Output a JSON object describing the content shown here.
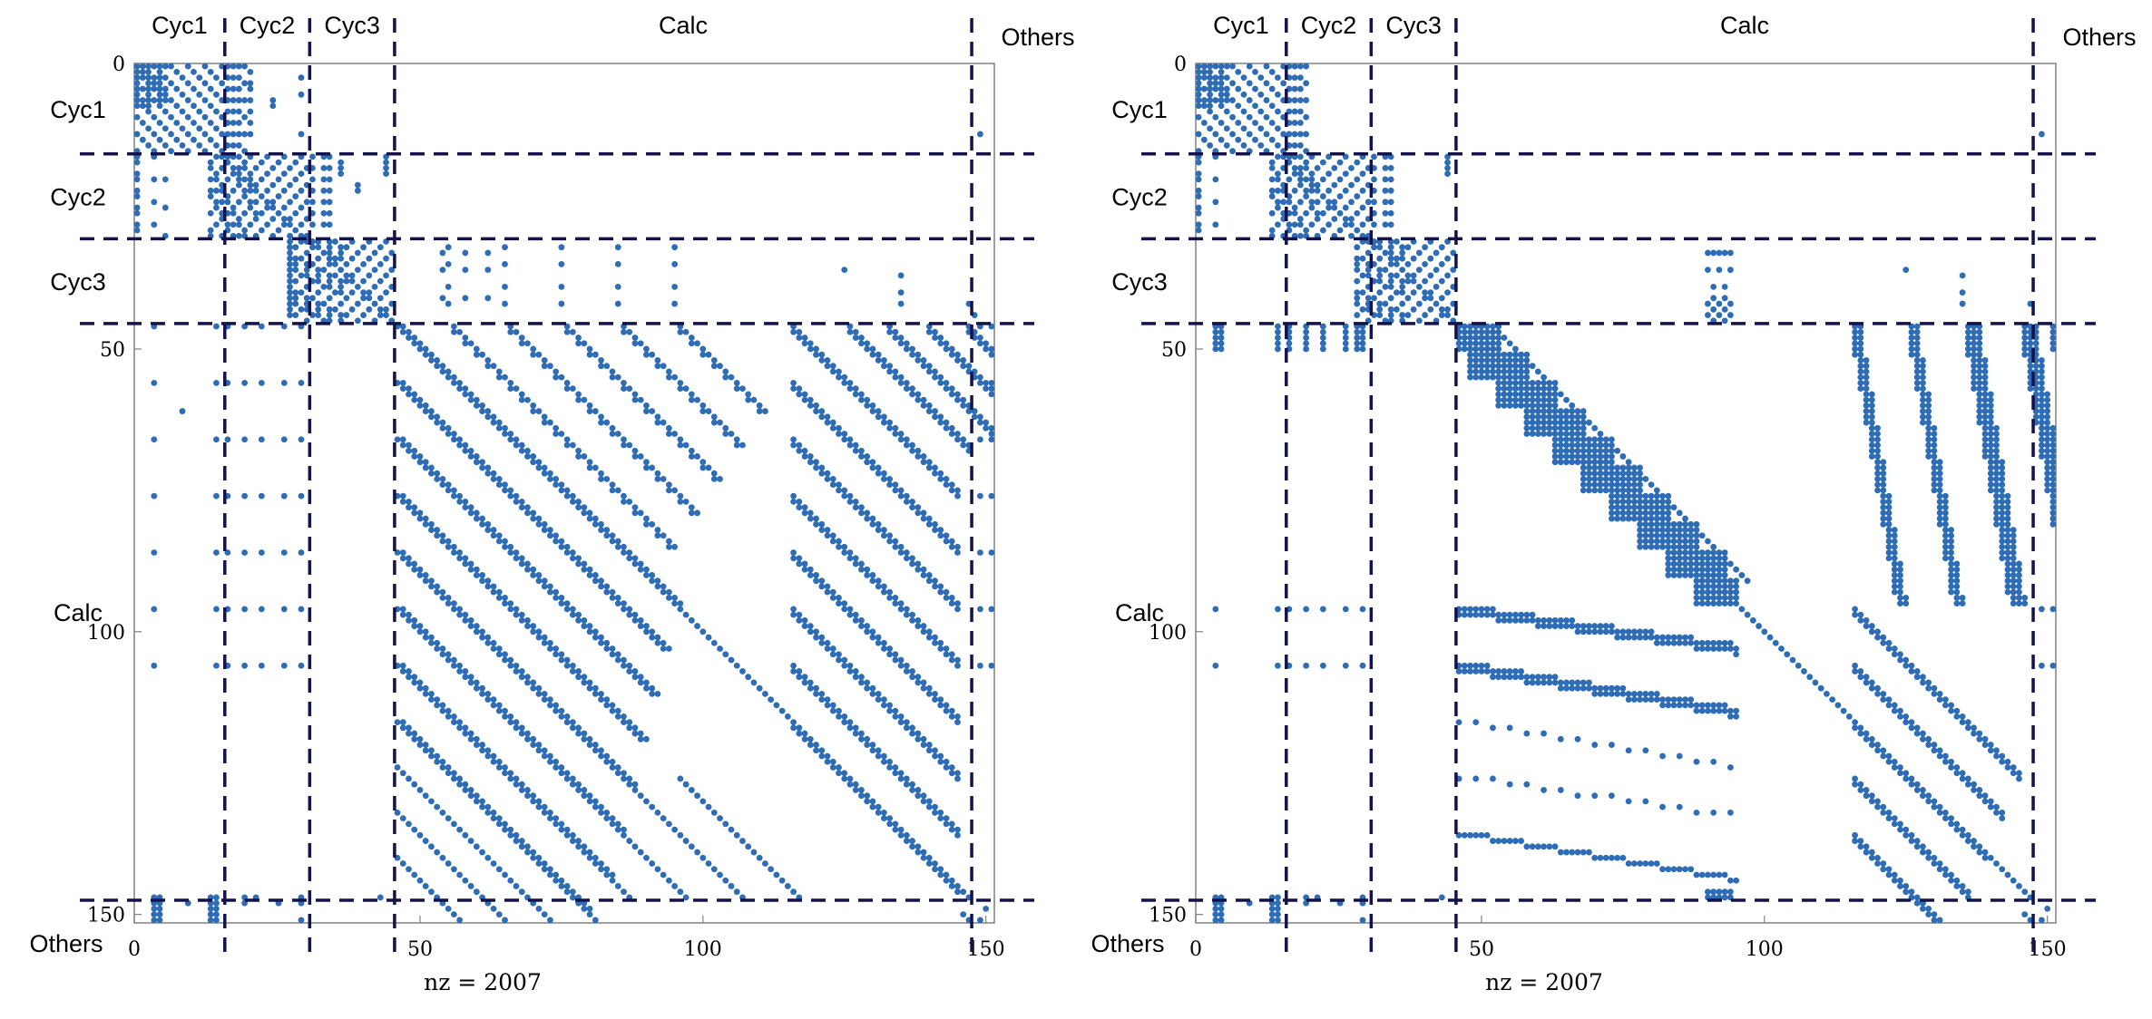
{
  "chart_data": [
    {
      "type": "scatter",
      "subtype": "sparsity-pattern",
      "panel": "left",
      "nz_label": "nz = 2007",
      "nz": 2007,
      "matrix_size": 152,
      "xlim": [
        0,
        152
      ],
      "ylim": [
        0,
        152
      ],
      "x_ticks": [
        "0",
        "50",
        "100",
        "150"
      ],
      "y_ticks": [
        "0",
        "50",
        "100",
        "150"
      ],
      "block_boundaries": [
        15.5,
        30.5,
        45.5,
        147.5
      ],
      "blocks": [
        "Cyc1",
        "Cyc2",
        "Cyc3",
        "Calc",
        "Others"
      ],
      "pattern": "diagonal-bands"
    },
    {
      "type": "scatter",
      "subtype": "sparsity-pattern",
      "panel": "right",
      "nz_label": "nz = 2007",
      "nz": 2007,
      "matrix_size": 152,
      "xlim": [
        0,
        152
      ],
      "ylim": [
        0,
        152
      ],
      "x_ticks": [
        "0",
        "50",
        "100",
        "150"
      ],
      "y_ticks": [
        "0",
        "50",
        "100",
        "150"
      ],
      "block_boundaries": [
        15.5,
        30.5,
        45.5,
        147.5
      ],
      "blocks": [
        "Cyc1",
        "Cyc2",
        "Cyc3",
        "Calc",
        "Others"
      ],
      "pattern": "reordered-staircase"
    }
  ],
  "colors": {
    "marker": "#2e6db5",
    "divider": "#14124a",
    "frame": "#808080"
  }
}
